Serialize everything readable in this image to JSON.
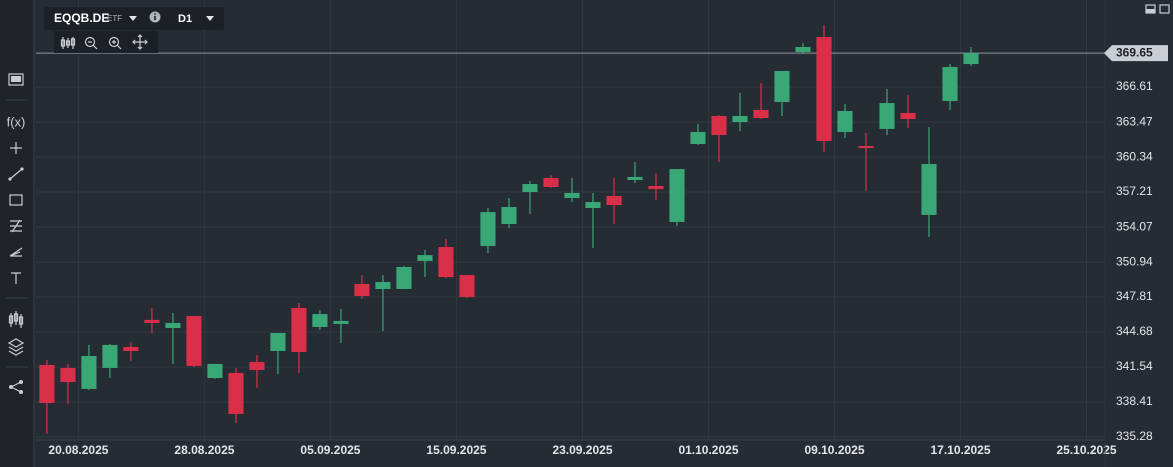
{
  "chart_data": {
    "type": "candlestick",
    "symbol": "EQQB.DE",
    "instrument_type": "ETF",
    "timeframe": "D1",
    "up_color": "#3aa776",
    "down_color": "#d92f49",
    "open": [
      341.73,
      341.46,
      339.58,
      341.46,
      343.34,
      345.76,
      345.04,
      346.11,
      340.56,
      341.01,
      341.99,
      342.98,
      346.83,
      345.13,
      345.4,
      348.98,
      348.53,
      348.53,
      351.04,
      352.29,
      349.78,
      352.38,
      354.35,
      357.21,
      358.47,
      356.68,
      355.78,
      356.86,
      358.29,
      357.75,
      354.53,
      361.51,
      364.02,
      363.48,
      364.56,
      365.27,
      369.75,
      371.09,
      362.59,
      361.33,
      362.86,
      364.29,
      355.16,
      365.36,
      368.67
    ],
    "high": [
      342.17,
      341.82,
      343.52,
      343.61,
      343.79,
      346.83,
      346.38,
      346.11,
      341.82,
      341.46,
      342.62,
      344.59,
      347.28,
      346.65,
      346.74,
      349.78,
      349.78,
      350.59,
      352.02,
      353.01,
      349.78,
      355.78,
      356.68,
      358.2,
      358.74,
      358.47,
      357.13,
      358.47,
      359.9,
      358.92,
      359.27,
      363.3,
      364.11,
      366.08,
      366.97,
      368.05,
      370.55,
      372.17,
      365.09,
      362.5,
      366.44,
      365.9,
      363.03,
      368.67,
      370.2
    ],
    "low": [
      335.55,
      338.23,
      339.49,
      340.56,
      342.08,
      344.59,
      341.82,
      341.55,
      340.47,
      336.53,
      339.67,
      340.92,
      341.01,
      344.86,
      343.7,
      347.64,
      344.77,
      348.53,
      349.6,
      349.52,
      347.72,
      351.75,
      353.99,
      355.25,
      357.57,
      356.32,
      352.2,
      354.35,
      358.02,
      356.5,
      354.17,
      361.42,
      359.9,
      362.68,
      363.75,
      364.02,
      369.57,
      360.8,
      362.05,
      357.3,
      362.32,
      362.94,
      353.19,
      364.56,
      368.5
    ],
    "close": [
      338.32,
      340.2,
      342.53,
      343.52,
      342.98,
      345.49,
      345.49,
      341.64,
      341.82,
      337.34,
      341.28,
      344.59,
      342.89,
      346.29,
      345.67,
      347.9,
      349.16,
      350.5,
      351.57,
      349.6,
      347.81,
      355.42,
      355.87,
      357.93,
      357.66,
      357.13,
      356.32,
      356.05,
      358.56,
      357.48,
      359.27,
      362.59,
      362.32,
      364.02,
      363.84,
      368.05,
      370.2,
      361.78,
      364.47,
      361.15,
      365.18,
      363.75,
      359.72,
      368.41,
      369.65
    ],
    "current_price": 369.65,
    "xlim": [
      -0.52,
      50.38
    ],
    "xticks": [
      {
        "value": 1,
        "label": "20.08.2025"
      },
      {
        "value": 7,
        "label": "28.08.2025"
      },
      {
        "value": 13,
        "label": "05.09.2025"
      },
      {
        "value": 19,
        "label": "15.09.2025"
      },
      {
        "value": 25,
        "label": "23.09.2025"
      },
      {
        "value": 31,
        "label": "01.10.2025"
      },
      {
        "value": 37,
        "label": "09.10.2025"
      },
      {
        "value": 43,
        "label": "17.10.2025"
      },
      {
        "value": 49,
        "label": "25.10.2025"
      }
    ],
    "ylim": [
      335.01,
      373.69
    ],
    "yticks": [
      335.28,
      338.41,
      341.54,
      344.68,
      347.81,
      350.94,
      354.07,
      357.21,
      360.34,
      363.47,
      366.61
    ],
    "grid": true
  },
  "toolbar": {
    "function_label": "f(x)"
  }
}
